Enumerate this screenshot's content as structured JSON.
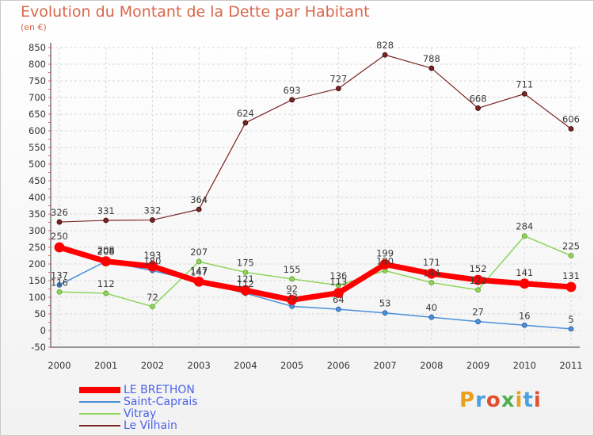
{
  "title": "Evolution du Montant de la Dette par Habitant",
  "unit_label": "(en €)",
  "logo": {
    "text": "Proxiti",
    "colors": [
      "#e8a020",
      "#4aa0e0",
      "#e05030",
      "#50b050",
      "#e8a020",
      "#4aa0e0",
      "#e05030"
    ]
  },
  "chart_data": {
    "type": "line",
    "title": "Evolution du Montant de la Dette par Habitant",
    "ylabel": "(en €)",
    "xlabel": "",
    "x": [
      "2000",
      "2001",
      "2002",
      "2003",
      "2004",
      "2005",
      "2006",
      "2007",
      "2008",
      "2009",
      "2010",
      "2011"
    ],
    "ylim": [
      -50,
      850
    ],
    "yticks": [
      -50,
      0,
      50,
      100,
      150,
      200,
      250,
      300,
      350,
      400,
      450,
      500,
      550,
      600,
      650,
      700,
      750,
      800,
      850
    ],
    "grid": true,
    "legend_position": "bottom-left",
    "series": [
      {
        "name": "LE BRETHON",
        "color": "#ff0000",
        "values": [
          250,
          208,
          193,
          147,
          121,
          92,
          113,
          199,
          171,
          152,
          141,
          131
        ]
      },
      {
        "name": "Saint-Caprais",
        "color": "#4a90d9",
        "values": [
          137,
          208,
          180,
          147,
          112,
          73,
          64,
          53,
          40,
          27,
          16,
          5
        ]
      },
      {
        "name": "Vitray",
        "color": "#8ed65a",
        "values": [
          116,
          112,
          72,
          207,
          175,
          155,
          136,
          180,
          144,
          122,
          284,
          225
        ]
      },
      {
        "name": "Le Vilhain",
        "color": "#7a2424",
        "values": [
          326,
          331,
          332,
          364,
          624,
          693,
          727,
          828,
          788,
          668,
          711,
          606
        ]
      }
    ],
    "data_labels": [
      {
        "series": 0,
        "labels": [
          "250",
          "208",
          "193",
          "147",
          "121",
          "92",
          "113",
          "199",
          "171",
          "152",
          "141",
          "131"
        ]
      },
      {
        "series": 1,
        "labels": [
          "137",
          "208",
          "180",
          "147",
          "112",
          "73",
          "64",
          "53",
          "40",
          "27",
          "16",
          "5"
        ]
      },
      {
        "series": 2,
        "labels": [
          "116",
          "112",
          "72",
          "207",
          "175",
          "155",
          "136",
          "180",
          "144",
          "122",
          "284",
          "225"
        ]
      },
      {
        "series": 3,
        "labels": [
          "326",
          "331",
          "332",
          "364",
          "624",
          "693",
          "727",
          "828",
          "788",
          "668",
          "711",
          "606"
        ]
      }
    ]
  }
}
